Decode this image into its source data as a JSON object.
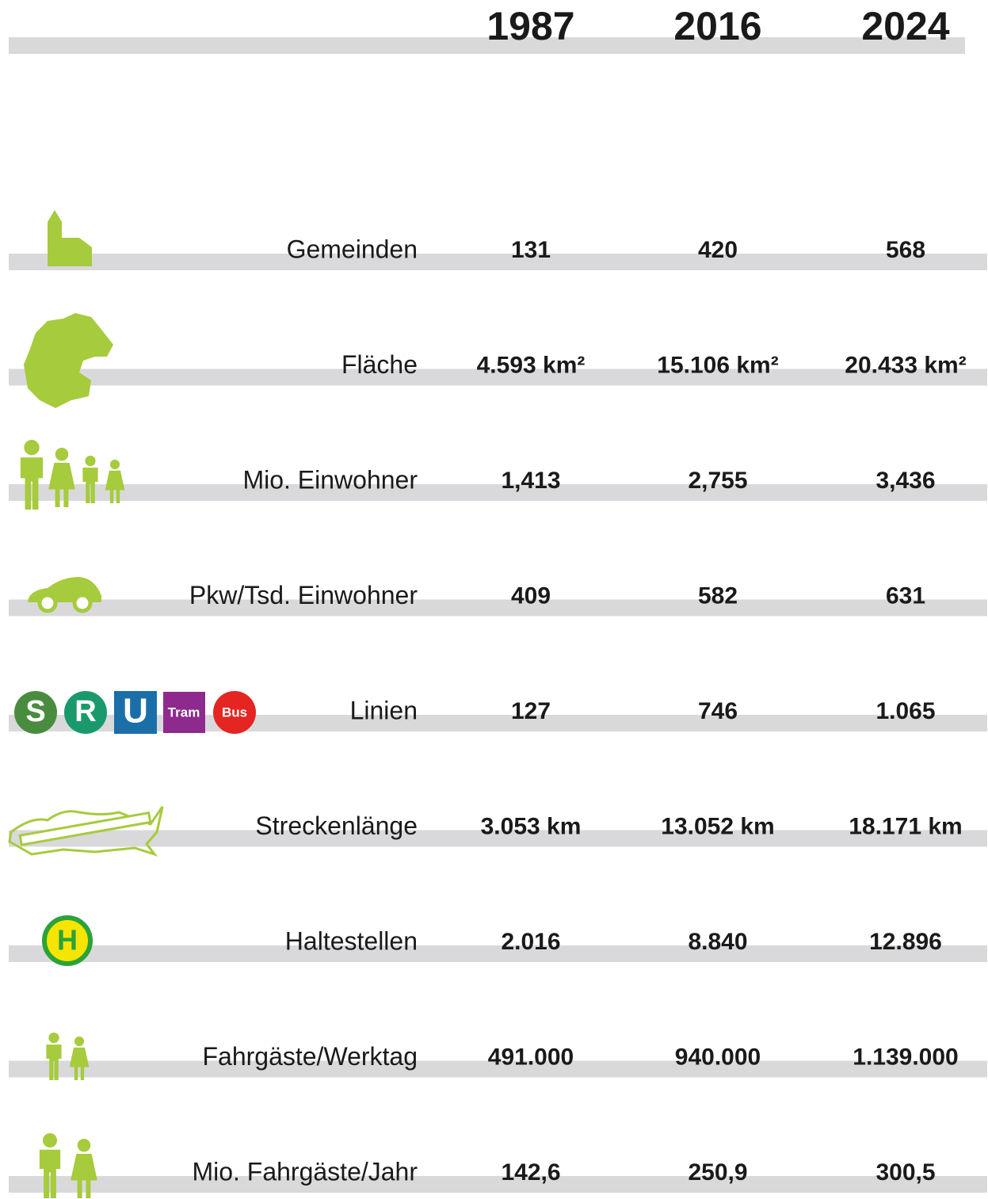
{
  "table": {
    "columns": [
      "1987",
      "2016",
      "2024"
    ],
    "rows": [
      {
        "label": "Gemeinden",
        "values": [
          "131",
          "420",
          "568"
        ]
      },
      {
        "label": "Fläche",
        "values": [
          "4.593 km²",
          "15.106 km²",
          "20.433 km²"
        ]
      },
      {
        "label": "Mio. Einwohner",
        "values": [
          "1,413",
          "2,755",
          "3,436"
        ]
      },
      {
        "label": "Pkw/Tsd. Einwohner",
        "values": [
          "409",
          "582",
          "631"
        ]
      },
      {
        "label": "Linien",
        "values": [
          "127",
          "746",
          "1.065"
        ]
      },
      {
        "label": "Streckenlänge",
        "values": [
          "3.053 km",
          "13.052 km",
          "18.171 km"
        ]
      },
      {
        "label": "Haltestellen",
        "values": [
          "2.016",
          "8.840",
          "12.896"
        ]
      },
      {
        "label": "Fahrgäste/Werktag",
        "values": [
          "491.000",
          "940.000",
          "1.139.000"
        ]
      },
      {
        "label": "Mio. Fahrgäste/Jahr",
        "values": [
          "142,6",
          "250,9",
          "300,5"
        ]
      }
    ]
  },
  "icons": {
    "lines": [
      "S",
      "R",
      "U",
      "Tram",
      "Bus"
    ],
    "stop": "H"
  }
}
